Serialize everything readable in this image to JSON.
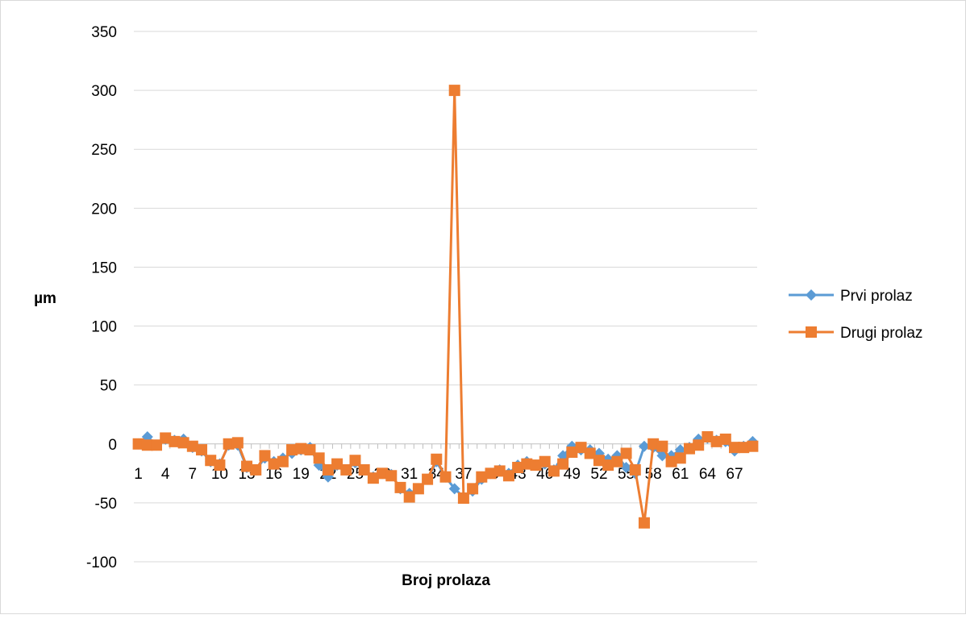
{
  "chart_data": {
    "type": "line",
    "title": "",
    "xlabel": "Broj prolaza",
    "ylabel": "µm",
    "ylim": [
      -100,
      350
    ],
    "yticks": [
      350,
      300,
      250,
      200,
      150,
      100,
      50,
      0,
      -50,
      -100
    ],
    "xtick_labels": [
      "1",
      "4",
      "7",
      "10",
      "13",
      "16",
      "19",
      "22",
      "25",
      "28",
      "31",
      "34",
      "37",
      "40",
      "43",
      "46",
      "49",
      "52",
      "55",
      "58",
      "61",
      "64",
      "67"
    ],
    "x": [
      1,
      2,
      3,
      4,
      5,
      6,
      7,
      8,
      9,
      10,
      11,
      12,
      13,
      14,
      15,
      16,
      17,
      18,
      19,
      20,
      21,
      22,
      23,
      24,
      25,
      26,
      27,
      28,
      29,
      30,
      31,
      32,
      33,
      34,
      35,
      36,
      37,
      38,
      39,
      40,
      41,
      42,
      43,
      44,
      45,
      46,
      47,
      48,
      49,
      50,
      51,
      52,
      53,
      54,
      55,
      56,
      57,
      58,
      59,
      60,
      61,
      62,
      63,
      64,
      65,
      66,
      67,
      68,
      69
    ],
    "grid": true,
    "legend_position": "right",
    "series": [
      {
        "name": "Prvi prolaz",
        "color": "#5b9bd5",
        "marker": "diamond",
        "values": [
          0,
          6,
          -1,
          4,
          3,
          4,
          -3,
          -6,
          -15,
          -17,
          -1,
          -1,
          -20,
          -22,
          -12,
          -15,
          -12,
          -8,
          -5,
          -3,
          -18,
          -28,
          -18,
          -22,
          -16,
          -22,
          -28,
          -25,
          -26,
          -38,
          -42,
          -38,
          -30,
          -15,
          -28,
          -38,
          -45,
          -40,
          -30,
          -25,
          -22,
          -25,
          -18,
          -15,
          -18,
          -17,
          -22,
          -10,
          -2,
          -5,
          -5,
          -8,
          -13,
          -10,
          -20,
          -25,
          -2,
          -3,
          -10,
          -10,
          -5,
          -3,
          4,
          5,
          3,
          2,
          -6,
          -2,
          2
        ]
      },
      {
        "name": "Drugi prolaz",
        "color": "#ed7d31",
        "marker": "square",
        "values": [
          0,
          -1,
          -1,
          5,
          2,
          1,
          -2,
          -5,
          -14,
          -18,
          0,
          1,
          -19,
          -22,
          -10,
          -17,
          -15,
          -5,
          -4,
          -5,
          -12,
          -22,
          -17,
          -22,
          -14,
          -22,
          -29,
          -25,
          -27,
          -37,
          -45,
          -38,
          -30,
          -13,
          -28,
          300,
          -46,
          -38,
          -28,
          -25,
          -23,
          -27,
          -20,
          -17,
          -18,
          -15,
          -23,
          -17,
          -7,
          -3,
          -8,
          -14,
          -18,
          -15,
          -8,
          -22,
          -67,
          0,
          -2,
          -15,
          -12,
          -4,
          -1,
          6,
          2,
          4,
          -3,
          -3,
          -2
        ]
      }
    ]
  }
}
